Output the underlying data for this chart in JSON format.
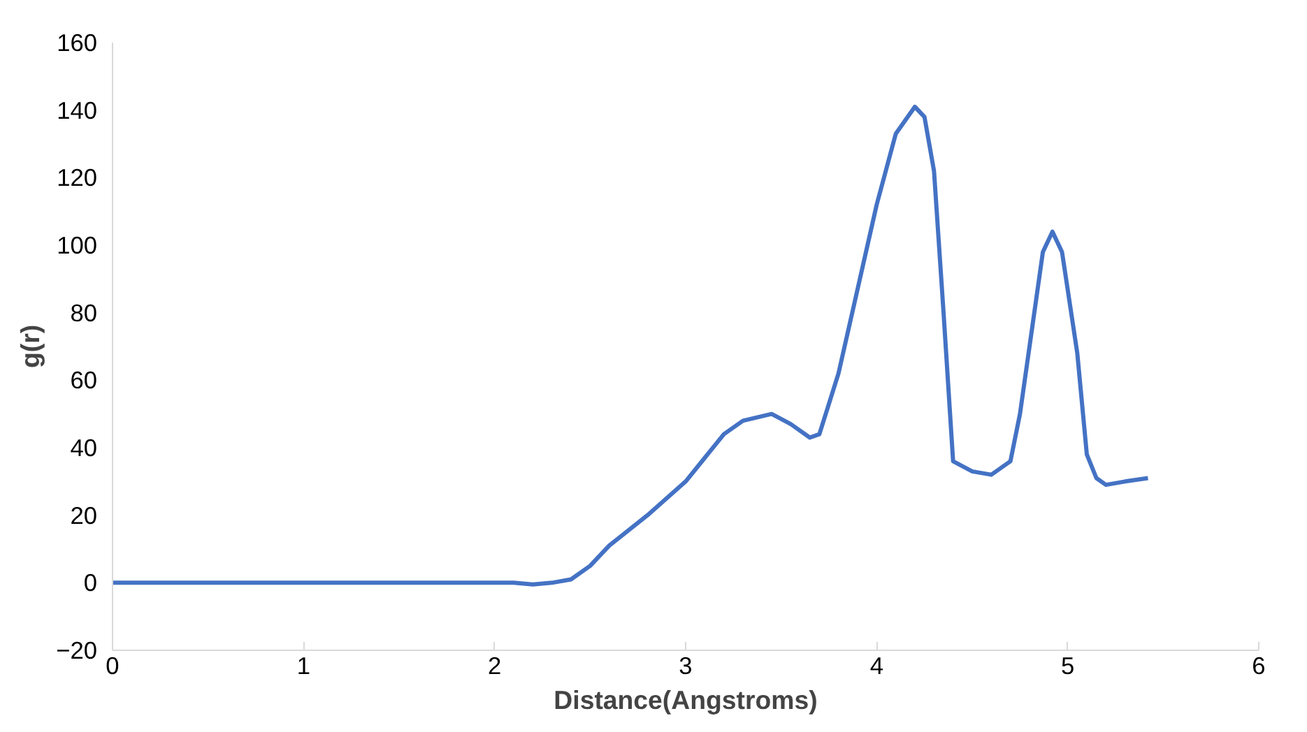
{
  "chart_data": {
    "type": "line",
    "xlabel": "Distance(Angstroms)",
    "ylabel": "g(r)",
    "x": [
      0,
      0.5,
      1,
      1.5,
      2,
      2.1,
      2.2,
      2.3,
      2.4,
      2.5,
      2.6,
      2.8,
      3.0,
      3.1,
      3.2,
      3.3,
      3.45,
      3.55,
      3.65,
      3.7,
      3.8,
      3.9,
      4.0,
      4.1,
      4.2,
      4.25,
      4.3,
      4.35,
      4.4,
      4.5,
      4.6,
      4.7,
      4.75,
      4.8,
      4.87,
      4.92,
      4.97,
      5.05,
      5.1,
      5.15,
      5.2,
      5.3,
      5.42
    ],
    "series": [
      {
        "color": "#4472c4",
        "values": [
          0,
          0,
          0,
          0,
          0,
          0,
          -0.5,
          0,
          1,
          5,
          11,
          20,
          30,
          37,
          44,
          48,
          50,
          47,
          43,
          44,
          62,
          87,
          112,
          133,
          141,
          138,
          122,
          80,
          36,
          33,
          32,
          36,
          50,
          70,
          98,
          104,
          98,
          68,
          38,
          31,
          29,
          30,
          31
        ]
      }
    ],
    "xlim": [
      0,
      6
    ],
    "xticks": [
      0,
      1,
      2,
      3,
      4,
      5,
      6
    ],
    "ylim": [
      -20,
      160
    ],
    "yticks": [
      -20,
      0,
      20,
      40,
      60,
      80,
      100,
      120,
      140,
      160
    ],
    "grid": false,
    "marker": "none",
    "line_style": "solid"
  }
}
